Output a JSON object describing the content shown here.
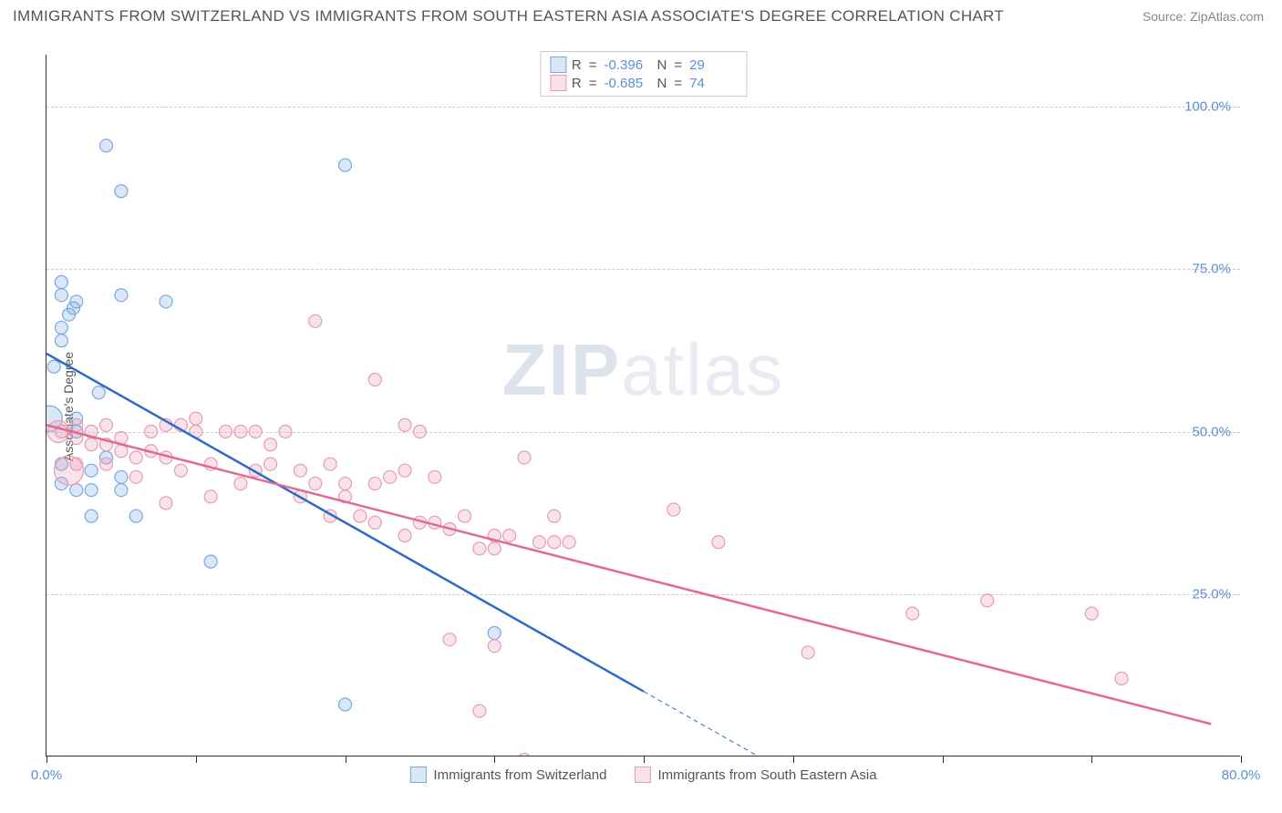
{
  "header": {
    "title": "IMMIGRANTS FROM SWITZERLAND VS IMMIGRANTS FROM SOUTH EASTERN ASIA ASSOCIATE'S DEGREE CORRELATION CHART",
    "source": "Source: ZipAtlas.com"
  },
  "watermark": {
    "part1": "ZIP",
    "part2": "atlas"
  },
  "chart": {
    "type": "scatter",
    "ylabel": "Associate's Degree",
    "xlim": [
      0,
      80
    ],
    "ylim": [
      0,
      108
    ],
    "grid_color": "#cccccc",
    "background_color": "#ffffff",
    "axis_color": "#333333",
    "tick_color": "#5b8fd6",
    "yticks": [
      25,
      50,
      75,
      100
    ],
    "ytick_labels": [
      "25.0%",
      "50.0%",
      "75.0%",
      "100.0%"
    ],
    "xticks": [
      0,
      80
    ],
    "xtick_labels": [
      "0.0%",
      "80.0%"
    ],
    "x_minor_ticks": [
      0,
      10,
      20,
      30,
      40,
      50,
      60,
      70,
      80
    ],
    "series": [
      {
        "name": "Immigrants from Switzerland",
        "color": "#7aa8e0",
        "fill": "rgba(122,168,224,0.28)",
        "stroke": "#7aa8e0",
        "line_color": "#2e6bc9",
        "R": "-0.396",
        "N": "29",
        "marker_r": 7,
        "trend": {
          "x1": 0,
          "y1": 62,
          "x2": 40,
          "y2": 10,
          "dash_to_x": 50
        },
        "points": [
          [
            1,
            73
          ],
          [
            1,
            71
          ],
          [
            2,
            70
          ],
          [
            1.5,
            68
          ],
          [
            1,
            66
          ],
          [
            1,
            64
          ],
          [
            2,
            52
          ],
          [
            4,
            94
          ],
          [
            5,
            87
          ],
          [
            5,
            71
          ],
          [
            8,
            70
          ],
          [
            3.5,
            56
          ],
          [
            1,
            42
          ],
          [
            2,
            41
          ],
          [
            3,
            41
          ],
          [
            5,
            41
          ],
          [
            5,
            43
          ],
          [
            3,
            37
          ],
          [
            6,
            37
          ],
          [
            11,
            30
          ],
          [
            20,
            91
          ],
          [
            20,
            8
          ],
          [
            30,
            19
          ],
          [
            1,
            45
          ],
          [
            2,
            50
          ],
          [
            3,
            44
          ],
          [
            4,
            46
          ],
          [
            0.5,
            60
          ],
          [
            1.8,
            69
          ]
        ],
        "big_points": [
          [
            0.2,
            52,
            14
          ]
        ]
      },
      {
        "name": "Immigrants from South Eastern Asia",
        "color": "#e89bb2",
        "fill": "rgba(232,155,178,0.28)",
        "stroke": "#e89bb2",
        "line_color": "#e36a8f",
        "R": "-0.685",
        "N": "74",
        "marker_r": 7,
        "trend": {
          "x1": 0,
          "y1": 51,
          "x2": 78,
          "y2": 5
        },
        "points": [
          [
            1,
            50
          ],
          [
            2,
            51
          ],
          [
            2,
            49
          ],
          [
            3,
            48
          ],
          [
            3,
            50
          ],
          [
            4,
            51
          ],
          [
            4,
            48
          ],
          [
            5,
            47
          ],
          [
            5,
            49
          ],
          [
            6,
            46
          ],
          [
            7,
            47
          ],
          [
            7,
            50
          ],
          [
            8,
            46
          ],
          [
            8,
            51
          ],
          [
            9,
            44
          ],
          [
            9,
            51
          ],
          [
            10,
            52
          ],
          [
            10,
            50
          ],
          [
            11,
            45
          ],
          [
            12,
            50
          ],
          [
            13,
            50
          ],
          [
            13,
            42
          ],
          [
            14,
            50
          ],
          [
            15,
            45
          ],
          [
            16,
            50
          ],
          [
            17,
            44
          ],
          [
            17,
            40
          ],
          [
            18,
            67
          ],
          [
            18,
            42
          ],
          [
            19,
            45
          ],
          [
            19,
            37
          ],
          [
            20,
            40
          ],
          [
            20,
            42
          ],
          [
            22,
            58
          ],
          [
            22,
            42
          ],
          [
            22,
            36
          ],
          [
            23,
            43
          ],
          [
            24,
            51
          ],
          [
            24,
            34
          ],
          [
            25,
            50
          ],
          [
            26,
            36
          ],
          [
            26,
            43
          ],
          [
            27,
            35
          ],
          [
            27,
            18
          ],
          [
            28,
            37
          ],
          [
            29,
            32
          ],
          [
            29,
            7
          ],
          [
            30,
            32
          ],
          [
            30,
            17
          ],
          [
            31,
            34
          ],
          [
            32,
            46
          ],
          [
            33,
            33
          ],
          [
            34,
            37
          ],
          [
            34,
            33
          ],
          [
            35,
            33
          ],
          [
            32,
            -0.5
          ],
          [
            42,
            38
          ],
          [
            45,
            33
          ],
          [
            51,
            16
          ],
          [
            58,
            22
          ],
          [
            63,
            24
          ],
          [
            70,
            22
          ],
          [
            72,
            12
          ],
          [
            11,
            40
          ],
          [
            6,
            43
          ],
          [
            4,
            45
          ],
          [
            2,
            45
          ],
          [
            8,
            39
          ],
          [
            14,
            44
          ],
          [
            15,
            48
          ],
          [
            24,
            44
          ],
          [
            25,
            36
          ],
          [
            21,
            37
          ],
          [
            30,
            34
          ]
        ],
        "big_points": [
          [
            0.8,
            50,
            12
          ],
          [
            1.5,
            44,
            16
          ]
        ]
      }
    ],
    "legend_top": {
      "R_label": "R",
      "N_label": "N",
      "eq": "="
    },
    "legend_bottom_labels": [
      "Immigrants from Switzerland",
      "Immigrants from South Eastern Asia"
    ]
  }
}
